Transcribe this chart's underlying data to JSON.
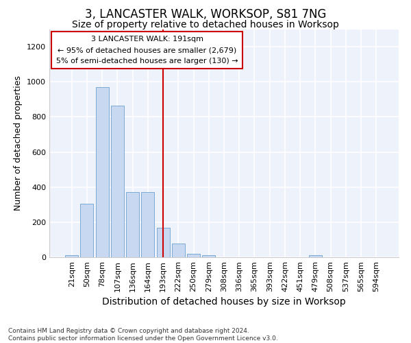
{
  "title": "3, LANCASTER WALK, WORKSOP, S81 7NG",
  "subtitle": "Size of property relative to detached houses in Worksop",
  "xlabel": "Distribution of detached houses by size in Worksop",
  "ylabel": "Number of detached properties",
  "footnote": "Contains HM Land Registry data © Crown copyright and database right 2024.\nContains public sector information licensed under the Open Government Licence v3.0.",
  "bin_labels": [
    "21sqm",
    "50sqm",
    "78sqm",
    "107sqm",
    "136sqm",
    "164sqm",
    "193sqm",
    "222sqm",
    "250sqm",
    "279sqm",
    "308sqm",
    "336sqm",
    "365sqm",
    "393sqm",
    "422sqm",
    "451sqm",
    "479sqm",
    "508sqm",
    "537sqm",
    "565sqm",
    "594sqm"
  ],
  "bar_values": [
    10,
    305,
    970,
    865,
    370,
    370,
    170,
    80,
    20,
    12,
    0,
    0,
    0,
    0,
    0,
    0,
    10,
    0,
    0,
    0,
    0
  ],
  "bar_color": "#c8d8f0",
  "bar_edge_color": "#7aaad4",
  "vline_x_index": 6,
  "vline_color": "#cc0000",
  "annotation_text": "3 LANCASTER WALK: 191sqm\n← 95% of detached houses are smaller (2,679)\n5% of semi-detached houses are larger (130) →",
  "annotation_box_color": "#ffffff",
  "annotation_box_edge": "#cc0000",
  "ylim": [
    0,
    1300
  ],
  "yticks": [
    0,
    200,
    400,
    600,
    800,
    1000,
    1200
  ],
  "background_color": "#ffffff",
  "plot_bg_color": "#eef2fb",
  "grid_color": "#ffffff",
  "title_fontsize": 12,
  "subtitle_fontsize": 10,
  "tick_fontsize": 8,
  "ylabel_fontsize": 9,
  "xlabel_fontsize": 10,
  "footnote_fontsize": 6.5
}
